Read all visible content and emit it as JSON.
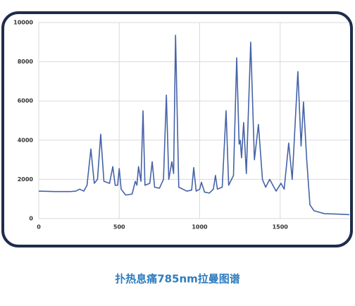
{
  "chart_data": {
    "type": "line",
    "title": "扑热息痛785nm拉曼图谱",
    "x": [
      0,
      100,
      200,
      230,
      254,
      280,
      300,
      324,
      345,
      365,
      385,
      405,
      440,
      460,
      475,
      490,
      500,
      512,
      540,
      580,
      600,
      610,
      620,
      635,
      648,
      660,
      690,
      705,
      720,
      750,
      775,
      793,
      808,
      827,
      838,
      850,
      870,
      920,
      950,
      963,
      978,
      1000,
      1011,
      1030,
      1060,
      1085,
      1098,
      1110,
      1140,
      1164,
      1180,
      1210,
      1230,
      1245,
      1252,
      1260,
      1273,
      1290,
      1317,
      1340,
      1365,
      1390,
      1410,
      1435,
      1475,
      1505,
      1525,
      1553,
      1575,
      1610,
      1630,
      1645,
      1665,
      1685,
      1710,
      1775,
      1850,
      1930
    ],
    "values": [
      1400,
      1380,
      1380,
      1400,
      1500,
      1400,
      1700,
      3550,
      1800,
      2000,
      4300,
      1900,
      1800,
      2650,
      1700,
      1700,
      2550,
      1500,
      1200,
      1250,
      1900,
      1700,
      2650,
      1900,
      5500,
      1700,
      1800,
      2900,
      1600,
      1550,
      2000,
      6300,
      2000,
      2900,
      2300,
      9350,
      1600,
      1400,
      1450,
      2600,
      1400,
      1500,
      1850,
      1350,
      1300,
      1500,
      2200,
      1500,
      1600,
      5500,
      1700,
      2200,
      8200,
      3800,
      4000,
      3100,
      4900,
      2300,
      9000,
      3000,
      4800,
      2000,
      1600,
      2000,
      1400,
      1800,
      1500,
      3850,
      2000,
      7500,
      3700,
      5950,
      3000,
      700,
      400,
      250,
      230,
      200
    ],
    "color": "#4563a8",
    "xlim": [
      0,
      1930
    ],
    "ylim": [
      0,
      10000
    ],
    "xticks": [
      0,
      500,
      1000,
      1500
    ],
    "yticks": [
      0,
      2000,
      4000,
      6000,
      8000,
      10000
    ],
    "grid": true
  }
}
